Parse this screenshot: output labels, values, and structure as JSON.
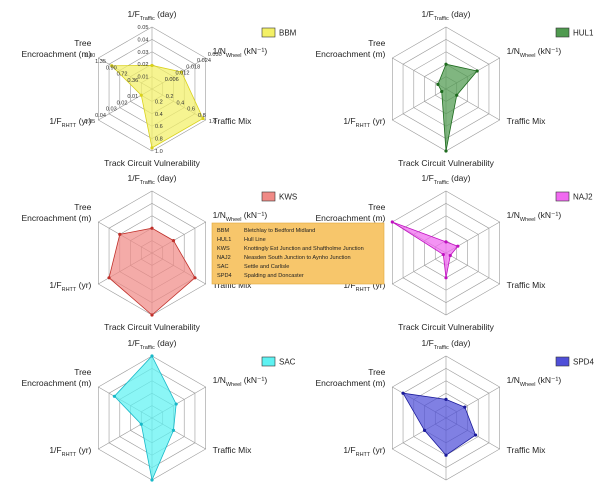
{
  "figure": {
    "axes": [
      {
        "main": "1/F",
        "sub": "Traffic",
        "tail": " (day)"
      },
      {
        "main": "1/N",
        "sub": "Wheel",
        "tail": " (kN⁻¹)"
      },
      {
        "main": "Traffic Mix",
        "sub": "",
        "tail": ""
      },
      {
        "main": "Track Circuit Vulnerability",
        "sub": "",
        "tail": ""
      },
      {
        "main": "1/F",
        "sub": "RHTT",
        "tail": " (yr)"
      },
      {
        "main": "Tree",
        "sub": "",
        "tail": "",
        "line2": "Encroachment (m)"
      }
    ],
    "ticks": [
      [
        "0.01",
        "0.02",
        "0.03",
        "0.04",
        "0.05"
      ],
      [
        "0.006",
        "0.012",
        "0.018",
        "0.024",
        "0.030"
      ],
      [
        "0.2",
        "0.4",
        "0.6",
        "0.8",
        "1.0"
      ],
      [
        "0.2",
        "0.4",
        "0.6",
        "0.8",
        "1.0"
      ],
      [
        "0.01",
        "0.02",
        "0.03",
        "0.04",
        "0.05"
      ],
      [
        "0.36",
        "0.72",
        "0.90",
        "1.35",
        "1.80"
      ]
    ],
    "key": [
      {
        "code": "BBM",
        "name": "Bletchlay to Bedford Midland"
      },
      {
        "code": "HUL1",
        "name": "Hull Line"
      },
      {
        "code": "KWS",
        "name": "Knottingly Est Junction and Shaftholme Junction"
      },
      {
        "code": "NAJ2",
        "name": "Neasden South Junction to Aynho Junction"
      },
      {
        "code": "SAC",
        "name": "Settle and Carlisle"
      },
      {
        "code": "SPD4",
        "name": "Spalding and Doncaster"
      }
    ]
  },
  "chart_data": [
    {
      "type": "radar",
      "name": "BBM",
      "color": "#f3f066",
      "edge": "#d9d11c",
      "axes": [
        "1/F Traffic (day)",
        "1/N Wheel (kN-1)",
        "Traffic Mix",
        "Track Circuit Vulnerability",
        "1/F RHTT (yr)",
        "Tree Encroachment (m)"
      ],
      "values": [
        0.38,
        0.55,
        0.95,
        0.95,
        0.2,
        0.75
      ],
      "show_ticks": true
    },
    {
      "type": "radar",
      "name": "HUL1",
      "color": "#4f9a4f",
      "edge": "#1e6b1e",
      "axes": [
        "1/F Traffic (day)",
        "1/N Wheel (kN-1)",
        "Traffic Mix",
        "Track Circuit Vulnerability",
        "1/F RHTT (yr)",
        "Tree Encroachment (m)"
      ],
      "values": [
        0.4,
        0.58,
        0.2,
        1.0,
        0.08,
        0.15
      ],
      "show_ticks": false
    },
    {
      "type": "radar",
      "name": "KWS",
      "color": "#f08a86",
      "edge": "#c0302a",
      "axes": [
        "1/F Traffic (day)",
        "1/N Wheel (kN-1)",
        "Traffic Mix",
        "Track Circuit Vulnerability",
        "1/F RHTT (yr)",
        "Tree Encroachment (m)"
      ],
      "values": [
        0.4,
        0.4,
        0.8,
        1.0,
        0.8,
        0.6
      ],
      "show_ticks": false
    },
    {
      "type": "radar",
      "name": "NAJ2",
      "color": "#f06af0",
      "edge": "#c010c0",
      "axes": [
        "1/F Traffic (day)",
        "1/N Wheel (kN-1)",
        "Traffic Mix",
        "Track Circuit Vulnerability",
        "1/F RHTT (yr)",
        "Tree Encroachment (m)"
      ],
      "values": [
        0.18,
        0.22,
        0.08,
        0.4,
        0.05,
        1.0
      ],
      "show_ticks": false
    },
    {
      "type": "radar",
      "name": "SAC",
      "color": "#5ef2f2",
      "edge": "#18b8c8",
      "axes": [
        "1/F Traffic (day)",
        "1/N Wheel (kN-1)",
        "Traffic Mix",
        "Track Circuit Vulnerability",
        "1/F RHTT (yr)",
        "Tree Encroachment (m)"
      ],
      "values": [
        1.0,
        0.45,
        0.4,
        1.0,
        0.2,
        0.7
      ],
      "show_ticks": false
    },
    {
      "type": "radar",
      "name": "SPD4",
      "color": "#4f4fd8",
      "edge": "#1a1a9a",
      "axes": [
        "1/F Traffic (day)",
        "1/N Wheel (kN-1)",
        "Traffic Mix",
        "Track Circuit Vulnerability",
        "1/F RHTT (yr)",
        "Tree Encroachment (m)"
      ],
      "values": [
        0.3,
        0.35,
        0.55,
        0.6,
        0.4,
        0.8
      ],
      "show_ticks": false
    }
  ]
}
